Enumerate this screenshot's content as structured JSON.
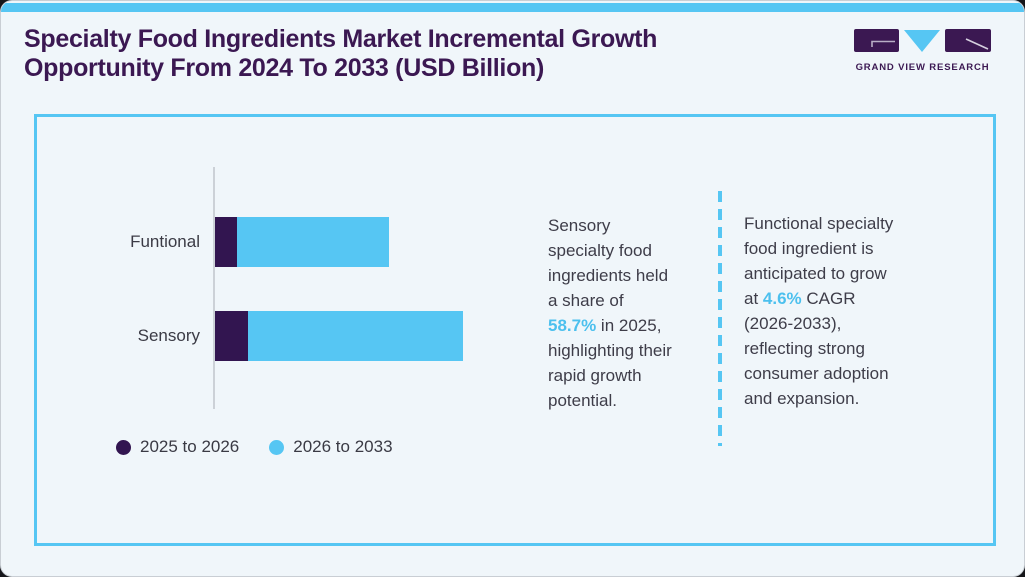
{
  "page": {
    "accent_color": "#56c6f3",
    "purple": "#321550",
    "highlight_color": "#4cc0ee"
  },
  "header": {
    "title_line1": "Specialty Food Ingredients Market Incremental Growth",
    "title_line2": "Opportunity From 2024 To 2033 (USD Billion)",
    "logo_text": "GRAND VIEW RESEARCH"
  },
  "chart_data": {
    "type": "bar",
    "orientation": "horizontal",
    "stacked": true,
    "title": "Specialty Food Ingredients Market Incremental Growth Opportunity From 2024 To 2033 (USD Billion)",
    "categories": [
      "Funtional",
      "Sensory"
    ],
    "series": [
      {
        "name": "2025 to 2026",
        "color": "#321550",
        "values": [
          5.2,
          7.8
        ]
      },
      {
        "name": "2026 to 2033",
        "color": "#56c6f3",
        "values": [
          36.0,
          51.0
        ]
      }
    ],
    "xlabel": "",
    "ylabel": "",
    "units": "relative share of combined incremental growth (%), estimated from bar lengths; no numeric axis shown",
    "grid": false,
    "axis_ticks": "none",
    "legend_position": "bottom-left"
  },
  "insights": [
    {
      "pre": "Sensory\nspecialty food\ningredients held\na share of\n",
      "highlight": "58.7%",
      "post": " in 2025,\nhighlighting their\nrapid growth\npotential."
    },
    {
      "pre": "Functional specialty\nfood ingredient is\nanticipated to grow\nat ",
      "highlight": "4.6%",
      "post": " CAGR\n(2026-2033),\nreflecting strong\nconsumer adoption\nand expansion."
    }
  ]
}
